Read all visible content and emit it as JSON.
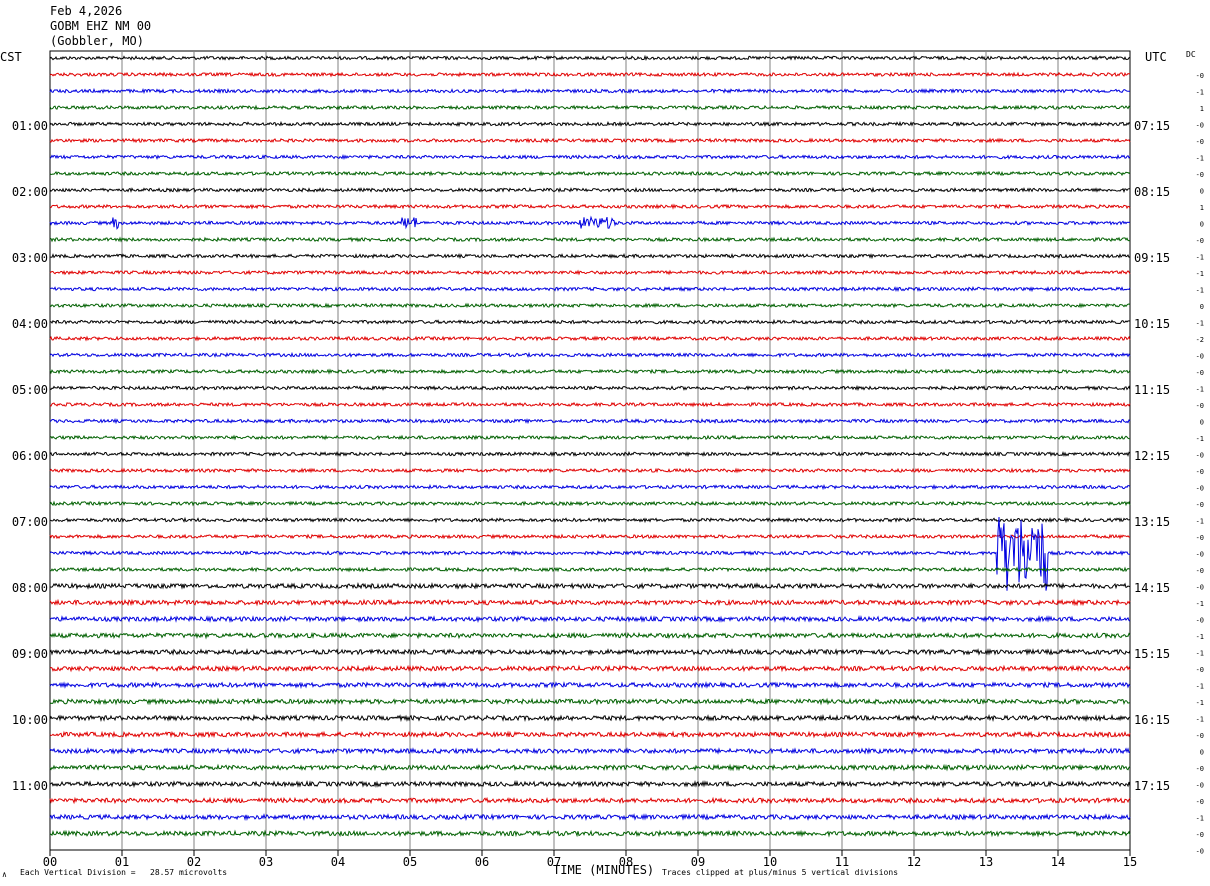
{
  "header": {
    "date": "Feb 4,2026",
    "station": "GOBM EHZ NM 00",
    "location": "(Gobbler, MO)"
  },
  "labels": {
    "left_tz": "CST",
    "right_tz": "UTC",
    "dc_header": "DC",
    "bottom_left_mark": "∧",
    "x_axis_title": "TIME (MINUTES)",
    "scale_note": "Each Vertical Division =   28.57 microvolts",
    "clip_note": "Traces clipped at plus/minus 5 vertical divisions"
  },
  "colors": {
    "trace_cycle": [
      "#000000",
      "#e00000",
      "#0000e0",
      "#006000"
    ],
    "grid": "#808080"
  },
  "chart_data": {
    "type": "line",
    "title": "GOBM EHZ NM 00 (Gobbler, MO) Feb 4,2026",
    "xlabel": "TIME (MINUTES)",
    "xlim": [
      0,
      15
    ],
    "x_ticks": [
      "00",
      "01",
      "02",
      "03",
      "04",
      "05",
      "06",
      "07",
      "08",
      "09",
      "10",
      "11",
      "12",
      "13",
      "14",
      "15"
    ],
    "trace_count": 48,
    "trace_minutes": 15,
    "left_hour_labels": [
      {
        "trace": 4,
        "label": "01:00"
      },
      {
        "trace": 8,
        "label": "02:00"
      },
      {
        "trace": 12,
        "label": "03:00"
      },
      {
        "trace": 16,
        "label": "04:00"
      },
      {
        "trace": 20,
        "label": "05:00"
      },
      {
        "trace": 24,
        "label": "06:00"
      },
      {
        "trace": 28,
        "label": "07:00"
      },
      {
        "trace": 32,
        "label": "08:00"
      },
      {
        "trace": 36,
        "label": "09:00"
      },
      {
        "trace": 40,
        "label": "10:00"
      },
      {
        "trace": 44,
        "label": "11:00"
      }
    ],
    "right_hour_labels": [
      {
        "trace": 4,
        "label": "07:15"
      },
      {
        "trace": 8,
        "label": "08:15"
      },
      {
        "trace": 12,
        "label": "09:15"
      },
      {
        "trace": 16,
        "label": "10:15"
      },
      {
        "trace": 20,
        "label": "11:15"
      },
      {
        "trace": 24,
        "label": "12:15"
      },
      {
        "trace": 28,
        "label": "13:15"
      },
      {
        "trace": 32,
        "label": "14:15"
      },
      {
        "trace": 36,
        "label": "15:15"
      },
      {
        "trace": 40,
        "label": "16:15"
      },
      {
        "trace": 44,
        "label": "17:15"
      }
    ],
    "dc_offsets": [
      "-0",
      "-1",
      "1",
      "-0",
      "-0",
      "-1",
      "-0",
      "0",
      "1",
      "0",
      "-0",
      "-1",
      "-1",
      "-1",
      "0",
      "-1",
      "-2",
      "-0",
      "-0",
      "-1",
      "-0",
      "0",
      "-1",
      "-0",
      "-0",
      "-0",
      "-0",
      "-1",
      "-0",
      "-0",
      "-0",
      "-0",
      "-1",
      "-0",
      "-1",
      "-1",
      "-0",
      "-1",
      "-1",
      "-1",
      "-0",
      "0",
      "-0",
      "-0",
      "-0",
      "-1",
      "-0",
      "-0"
    ],
    "events": [
      {
        "trace": 30,
        "start_min": 13.15,
        "end_min": 13.85,
        "amplitude": "clipped"
      },
      {
        "trace": 10,
        "start_min": 0.85,
        "end_min": 0.95,
        "amplitude": "small"
      },
      {
        "trace": 10,
        "start_min": 4.85,
        "end_min": 5.1,
        "amplitude": "small"
      },
      {
        "trace": 10,
        "start_min": 7.35,
        "end_min": 7.85,
        "amplitude": "small"
      }
    ]
  }
}
